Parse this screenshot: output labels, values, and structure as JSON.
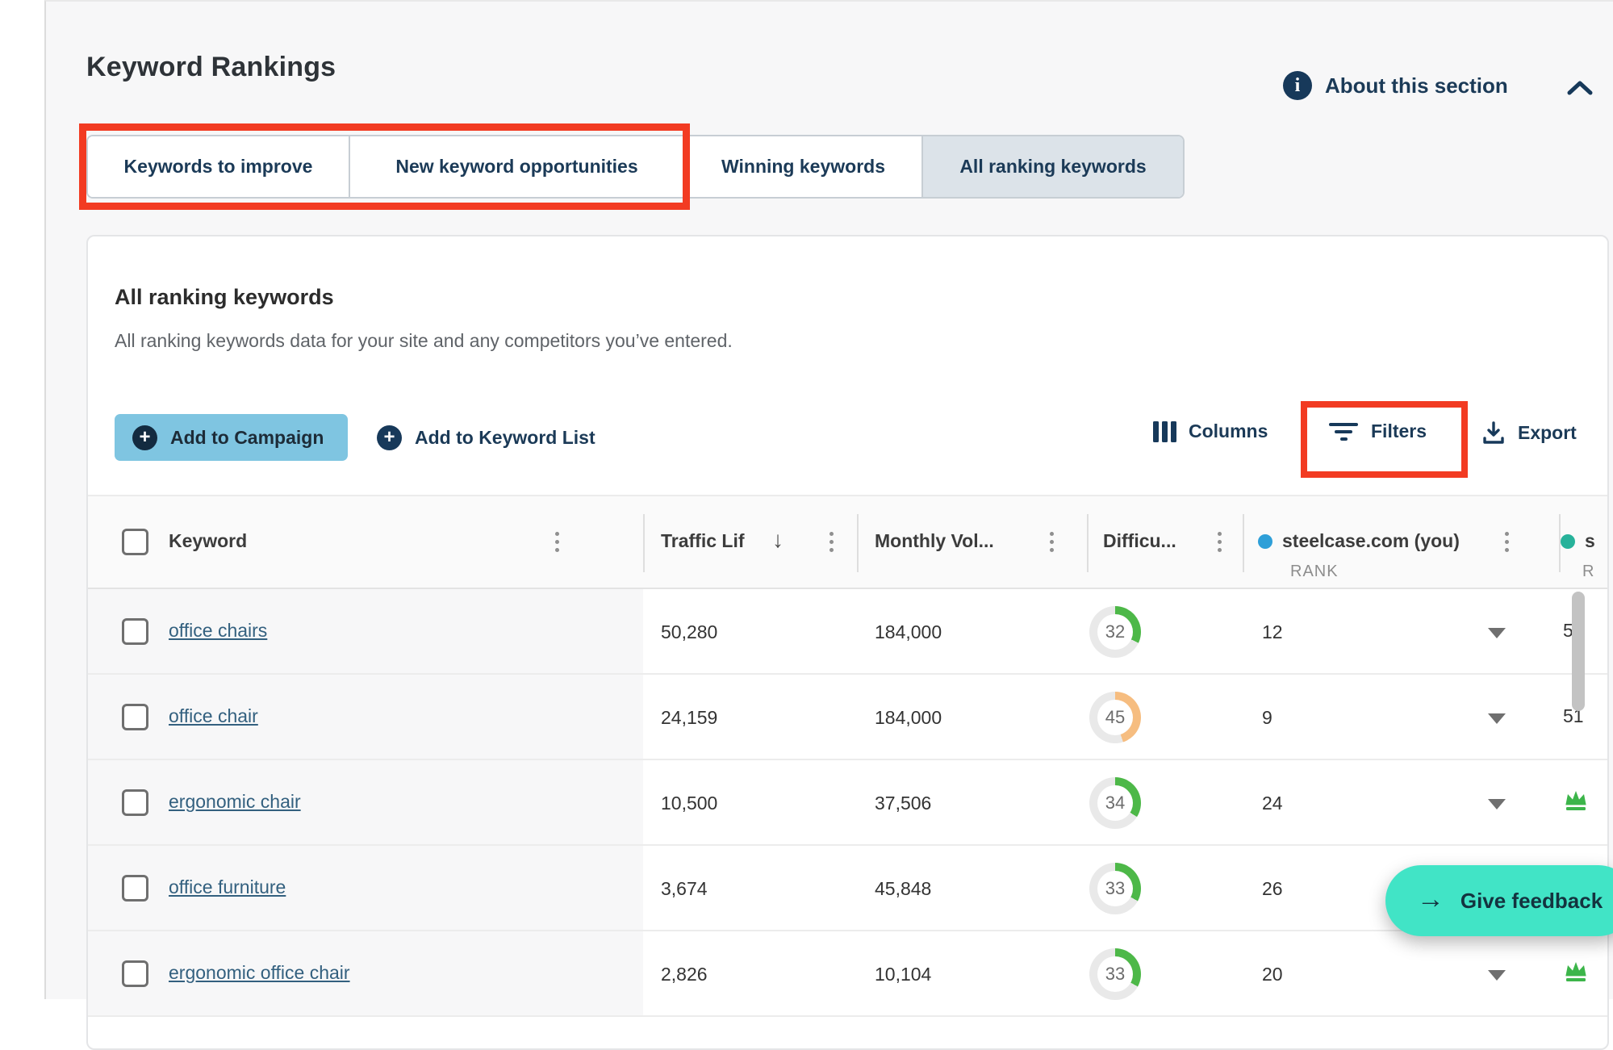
{
  "header": {
    "title": "Keyword Rankings",
    "about_label": "About this section"
  },
  "tabs": [
    {
      "label": "Keywords to improve",
      "selected": false
    },
    {
      "label": "New keyword opportunities",
      "selected": false
    },
    {
      "label": "Winning keywords",
      "selected": false
    },
    {
      "label": "All ranking keywords",
      "selected": true
    }
  ],
  "section": {
    "title": "All ranking keywords",
    "description": "All ranking keywords data for your site and any competitors you’ve entered."
  },
  "toolbar": {
    "add_to_campaign": "Add to Campaign",
    "add_to_keyword_list": "Add to Keyword List",
    "columns": "Columns",
    "filters": "Filters",
    "export": "Export"
  },
  "table": {
    "columns": {
      "keyword": "Keyword",
      "traffic_lift": "Traffic Lif",
      "monthly_volume": "Monthly Vol...",
      "difficulty": "Difficu...",
      "site1_label": "steelcase.com (you)",
      "site1_sub": "RANK",
      "site1_dot_color": "#2e9fd8",
      "site2_label": "s",
      "site2_sub": "R",
      "site2_dot_color": "#27b29a"
    },
    "rows": [
      {
        "keyword": "office chairs",
        "traffic_lift": "50,280",
        "monthly_volume": "184,000",
        "difficulty": 32,
        "difficulty_color": "#4db848",
        "rank": "12",
        "site2_value": "51",
        "site2_crown": false
      },
      {
        "keyword": "office chair",
        "traffic_lift": "24,159",
        "monthly_volume": "184,000",
        "difficulty": 45,
        "difficulty_color": "#f6bd80",
        "rank": "9",
        "site2_value": "51",
        "site2_crown": false
      },
      {
        "keyword": "ergonomic chair",
        "traffic_lift": "10,500",
        "monthly_volume": "37,506",
        "difficulty": 34,
        "difficulty_color": "#4db848",
        "rank": "24",
        "site2_value": "",
        "site2_crown": true
      },
      {
        "keyword": "office furniture",
        "traffic_lift": "3,674",
        "monthly_volume": "45,848",
        "difficulty": 33,
        "difficulty_color": "#4db848",
        "rank": "26",
        "site2_value": "",
        "site2_crown": true
      },
      {
        "keyword": "ergonomic office chair",
        "traffic_lift": "2,826",
        "monthly_volume": "10,104",
        "difficulty": 33,
        "difficulty_color": "#4db848",
        "rank": "20",
        "site2_value": "",
        "site2_crown": true
      }
    ]
  },
  "feedback": {
    "label": "Give feedback"
  },
  "colors": {
    "navy": "#1b3a57",
    "annotation_red": "#f23b22",
    "teal": "#41e4c6",
    "green": "#4db848",
    "orange": "#f6bd80",
    "ring_gray": "#e9e9e9",
    "crown_green": "#3cb54a"
  }
}
